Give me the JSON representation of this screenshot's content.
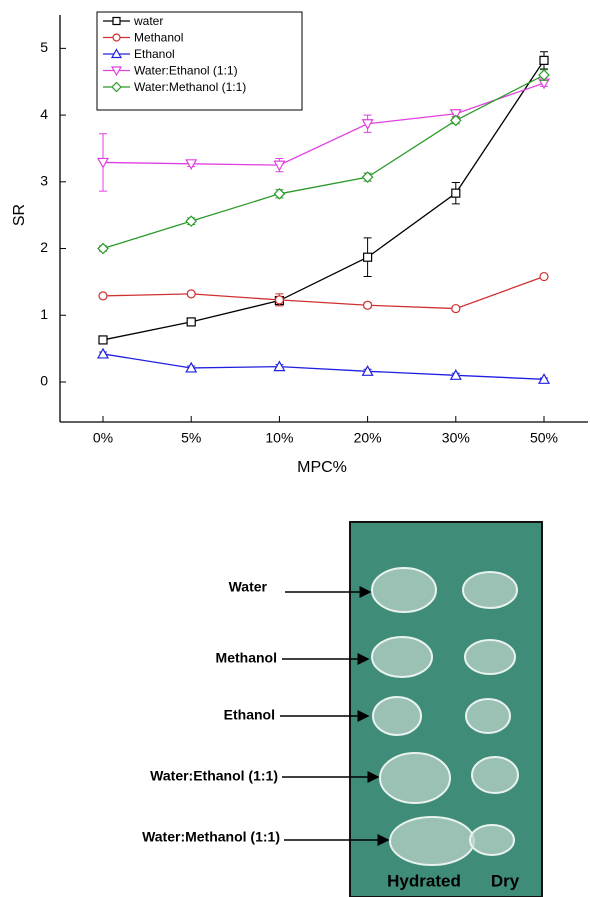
{
  "chart_data": {
    "type": "line",
    "x_label": "MPC%",
    "y_label": "SR",
    "categories": [
      "0%",
      "5%",
      "10%",
      "20%",
      "30%",
      "50%"
    ],
    "ylim": [
      -0.6,
      5.5
    ],
    "yticks": [
      0,
      1,
      2,
      3,
      4,
      5
    ],
    "legend": "upper-left",
    "series": [
      {
        "name": "water",
        "color": "#000000",
        "marker": "square",
        "values": [
          0.63,
          0.9,
          1.22,
          1.87,
          2.83,
          4.82
        ],
        "errors": [
          0.03,
          0.03,
          0.05,
          0.29,
          0.16,
          0.13
        ]
      },
      {
        "name": "Methanol",
        "color": "#d03030",
        "marker": "circle",
        "values": [
          1.29,
          1.32,
          1.23,
          1.15,
          1.1,
          1.58
        ],
        "errors": [
          0.03,
          0.03,
          0.09,
          0.04,
          0.03,
          0.03
        ]
      },
      {
        "name": "Ethanol",
        "color": "#2020e0",
        "marker": "triangle-up",
        "values": [
          0.42,
          0.21,
          0.23,
          0.16,
          0.1,
          0.04
        ],
        "errors": [
          0.03,
          0.03,
          0.03,
          0.03,
          0.03,
          0.02
        ]
      },
      {
        "name": "Water:Ethanol (1:1)",
        "color": "#e040e0",
        "marker": "triangle-down",
        "values": [
          3.29,
          3.27,
          3.25,
          3.87,
          4.02,
          4.48
        ],
        "errors": [
          0.43,
          0.04,
          0.1,
          0.13,
          0.04,
          0.05
        ]
      },
      {
        "name": "Water:Methanol (1:1)",
        "color": "#2a9a2a",
        "marker": "diamond",
        "values": [
          2.0,
          2.41,
          2.82,
          3.07,
          3.92,
          4.6
        ],
        "errors": [
          0.04,
          0.05,
          0.06,
          0.06,
          0.05,
          0.08
        ]
      }
    ]
  },
  "photo": {
    "labels": [
      "Water",
      "Methanol",
      "Ethanol",
      "Water:Ethanol (1:1)",
      "Water:Methanol (1:1)"
    ],
    "columns": [
      "Hydrated",
      "Dry"
    ]
  }
}
